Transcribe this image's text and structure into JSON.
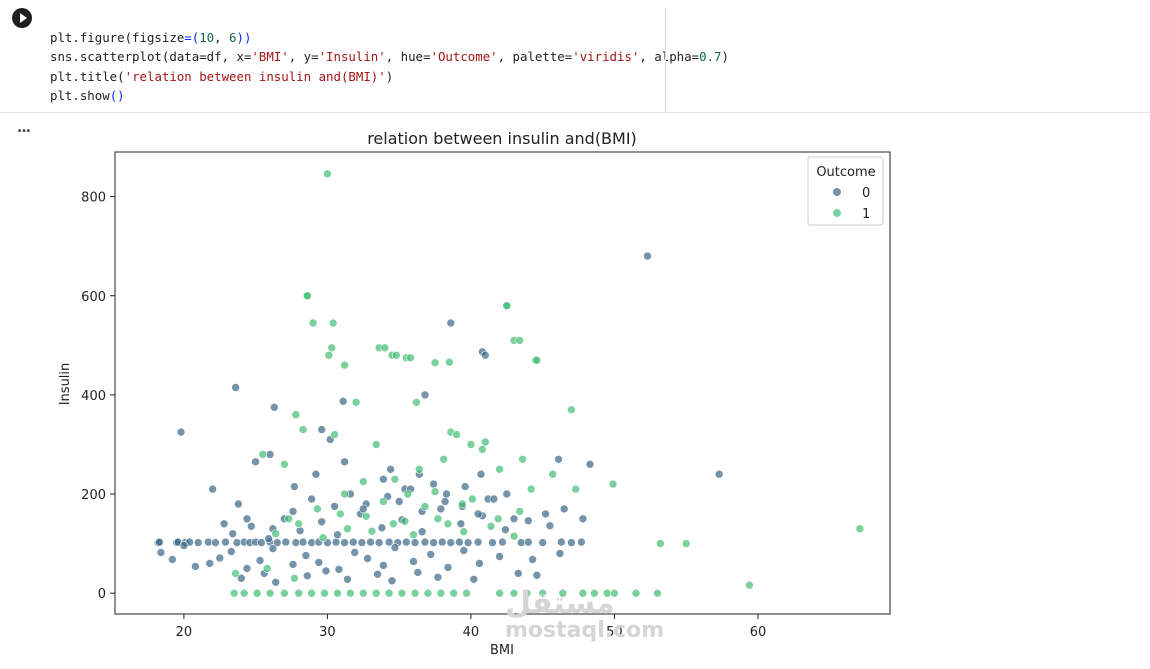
{
  "cell": {
    "run_icon": "play-circle-icon",
    "code_lines": [
      "plt.figure(figsize=(10, 6))",
      "sns.scatterplot(data=df, x='BMI', y='Insulin', hue='Outcome', palette='viridis', alpha=0.7)",
      "plt.title('relation between insulin and(BMI)')",
      "plt.show()"
    ],
    "output_menu_icon": "more-horizontal-icon",
    "output_menu_label": "..."
  },
  "watermark": {
    "arabic": "مستقل",
    "latin": "mostaql.com"
  },
  "chart_data": {
    "type": "scatter",
    "title": "relation between insulin and(BMI)",
    "xlabel": "BMI",
    "ylabel": "Insulin",
    "xlim": [
      15.2,
      69.2
    ],
    "ylim": [
      -42,
      890
    ],
    "xticks": [
      20,
      30,
      40,
      50,
      60
    ],
    "yticks": [
      0,
      200,
      400,
      600,
      800
    ],
    "grid": false,
    "legend": {
      "title": "Outcome",
      "placement": "top-right",
      "entries": [
        "0",
        "1"
      ]
    },
    "colors": {
      "0": "#3b6785",
      "1": "#41bd73"
    },
    "series": [
      {
        "name": "0",
        "x": [
          18.2,
          18.3,
          19.5,
          19.6,
          20.1,
          20.4,
          21.0,
          21.7,
          22.2,
          22.9,
          23.7,
          24.2,
          24.6,
          25.0,
          25.4,
          26.0,
          26.5,
          27.1,
          27.8,
          28.3,
          28.9,
          29.4,
          30.0,
          30.6,
          31.2,
          31.8,
          32.4,
          33.0,
          33.6,
          34.3,
          34.9,
          35.5,
          36.1,
          36.8,
          37.4,
          38.0,
          38.6,
          39.2,
          39.8,
          40.5,
          41.5,
          42.2,
          43.5,
          44.0,
          45.0,
          46.3,
          47.0,
          47.7,
          18.4,
          19.2,
          20.0,
          20.8,
          21.8,
          22.5,
          23.3,
          24.4,
          25.3,
          26.2,
          27.6,
          28.5,
          29.4,
          30.8,
          31.9,
          32.8,
          33.9,
          34.7,
          36.0,
          37.2,
          38.4,
          39.5,
          40.6,
          42.0,
          44.3,
          46.2,
          23.4,
          24.7,
          25.9,
          27.0,
          28.1,
          29.6,
          30.7,
          32.3,
          33.8,
          35.2,
          36.6,
          37.9,
          39.3,
          40.8,
          42.4,
          44.0,
          45.5,
          19.8,
          23.6,
          25.0,
          26.0,
          26.3,
          27.7,
          29.2,
          30.2,
          31.2,
          32.7,
          33.9,
          34.4,
          35.0,
          35.4,
          36.4,
          37.4,
          38.3,
          39.6,
          40.7,
          41.2,
          42.5,
          46.1,
          48.3,
          57.3,
          29.6,
          31.1,
          36.8,
          38.6,
          40.8,
          41.0,
          52.3,
          22.0,
          22.8,
          24.4,
          23.8,
          26.2,
          27.6,
          28.9,
          30.5,
          31.6,
          32.5,
          34.2,
          35.8,
          36.6,
          38.2,
          39.4,
          40.5,
          41.6,
          43.0,
          45.2,
          46.5,
          47.8,
          24.0,
          25.6,
          26.4,
          28.6,
          29.9,
          31.4,
          33.5,
          34.5,
          36.3,
          37.7,
          40.2,
          43.3,
          44.6
        ],
        "y": [
          102,
          103,
          102,
          103,
          102,
          103,
          102,
          103,
          102,
          103,
          102,
          103,
          102,
          103,
          102,
          103,
          102,
          103,
          102,
          103,
          102,
          103,
          102,
          103,
          102,
          103,
          102,
          103,
          102,
          103,
          102,
          103,
          102,
          103,
          102,
          103,
          102,
          103,
          102,
          103,
          102,
          103,
          102,
          103,
          102,
          103,
          102,
          103,
          82,
          68,
          96,
          54,
          60,
          71,
          84,
          50,
          66,
          90,
          58,
          76,
          62,
          48,
          82,
          70,
          56,
          92,
          64,
          78,
          52,
          86,
          60,
          74,
          68,
          80,
          120,
          135,
          110,
          150,
          126,
          144,
          118,
          160,
          132,
          148,
          124,
          170,
          140,
          156,
          128,
          146,
          136,
          325,
          415,
          265,
          280,
          375,
          215,
          240,
          310,
          265,
          180,
          230,
          250,
          185,
          210,
          240,
          220,
          200,
          215,
          240,
          190,
          200,
          270,
          260,
          240,
          330,
          387,
          400,
          545,
          487,
          480,
          680,
          210,
          140,
          150,
          180,
          130,
          165,
          190,
          175,
          200,
          170,
          195,
          210,
          165,
          185,
          175,
          160,
          190,
          150,
          160,
          170,
          150,
          30,
          40,
          22,
          35,
          45,
          28,
          38,
          25,
          42,
          32,
          28,
          40,
          36
        ],
        "count": 157
      },
      {
        "name": "1",
        "x": [
          23.5,
          24.2,
          25.1,
          26.0,
          27.0,
          28.0,
          28.9,
          29.8,
          30.7,
          31.6,
          32.5,
          33.4,
          34.3,
          35.2,
          36.1,
          37.0,
          37.9,
          38.8,
          39.7,
          42.0,
          43.0,
          43.9,
          45.0,
          46.4,
          47.8,
          48.6,
          49.5,
          50.0,
          51.5,
          53.0,
          28.6,
          29.0,
          30.3,
          30.1,
          31.2,
          32.0,
          33.6,
          34.5,
          35.5,
          36.2,
          37.5,
          38.6,
          39.0,
          40.0,
          41.0,
          42.5,
          43.0,
          44.5,
          30.0,
          28.6,
          30.4,
          34.0,
          34.8,
          35.8,
          38.5,
          42.5,
          43.4,
          44.6,
          27.8,
          27.0,
          28.3,
          25.5,
          30.5,
          31.2,
          32.5,
          33.4,
          34.7,
          35.6,
          36.4,
          37.5,
          38.1,
          39.4,
          40.8,
          42.0,
          43.6,
          44.2,
          45.7,
          47.0,
          47.3,
          49.9,
          27.3,
          29.3,
          30.9,
          32.7,
          33.9,
          35.4,
          36.8,
          38.4,
          40.1,
          41.9,
          43.4,
          26.4,
          28.0,
          29.7,
          31.4,
          33.1,
          34.6,
          36.0,
          37.7,
          39.5,
          41.4,
          43.0,
          53.2,
          55.0,
          59.4,
          67.1,
          23.6,
          25.8,
          27.7
        ],
        "y": [
          0,
          0,
          0,
          0,
          0,
          0,
          0,
          0,
          0,
          0,
          0,
          0,
          0,
          0,
          0,
          0,
          0,
          0,
          0,
          0,
          0,
          0,
          0,
          0,
          0,
          0,
          0,
          0,
          0,
          0,
          600,
          545,
          495,
          480,
          460,
          385,
          495,
          480,
          475,
          385,
          465,
          325,
          320,
          300,
          305,
          580,
          510,
          470,
          846,
          600,
          545,
          495,
          480,
          475,
          466,
          580,
          510,
          470,
          360,
          260,
          330,
          280,
          320,
          200,
          225,
          300,
          230,
          200,
          250,
          205,
          270,
          180,
          290,
          250,
          270,
          210,
          240,
          370,
          210,
          220,
          150,
          170,
          160,
          155,
          185,
          145,
          175,
          140,
          190,
          150,
          165,
          120,
          140,
          112,
          130,
          125,
          140,
          118,
          150,
          124,
          135,
          115,
          100,
          100,
          16,
          130,
          40,
          50,
          30
        ],
        "count": 107
      }
    ]
  }
}
